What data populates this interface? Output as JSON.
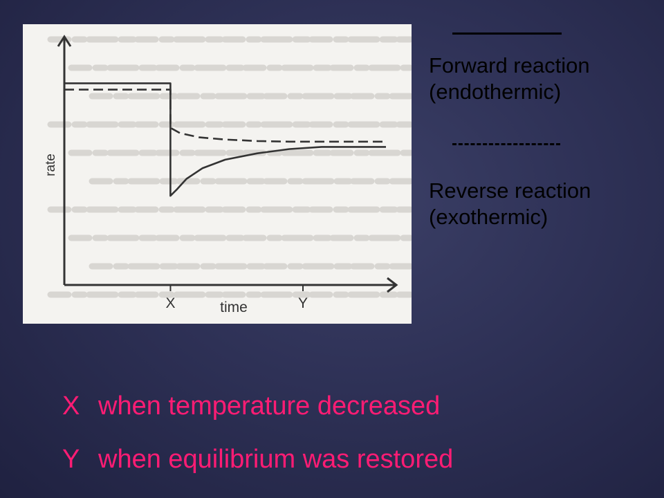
{
  "legend": {
    "forward_line1": "Forward reaction",
    "forward_line2": "(endothermic)",
    "reverse_line1": "Reverse reaction",
    "reverse_line2": "(exothermic)"
  },
  "annotations": [
    {
      "key": "X",
      "text": "when temperature decreased"
    },
    {
      "key": "Y",
      "text": "when equilibrium was restored"
    }
  ],
  "colors": {
    "annotation": "#ff1c74",
    "background": "#2e3156",
    "panel": "#f4f3f0",
    "curve": "#333333"
  },
  "chart_data": {
    "type": "line",
    "xlabel": "time",
    "ylabel": "rate",
    "x_ticks": [
      "X",
      "Y"
    ],
    "xlim": [
      0,
      10
    ],
    "ylim": [
      0,
      10
    ],
    "series": [
      {
        "style": "solid",
        "x": [
          0,
          3.3,
          3.3,
          3.5,
          3.8,
          4.3,
          5,
          6,
          7,
          8,
          9,
          10
        ],
        "y": [
          9.5,
          9.5,
          4.2,
          4.5,
          5.0,
          5.5,
          5.9,
          6.2,
          6.4,
          6.5,
          6.5,
          6.5
        ]
      },
      {
        "style": "dashed",
        "x": [
          0,
          3.3,
          3.3,
          3.6,
          4.2,
          5,
          6,
          7,
          8,
          9,
          10
        ],
        "y": [
          9.2,
          9.2,
          7.4,
          7.15,
          6.95,
          6.85,
          6.78,
          6.75,
          6.75,
          6.75,
          6.75
        ]
      }
    ]
  }
}
